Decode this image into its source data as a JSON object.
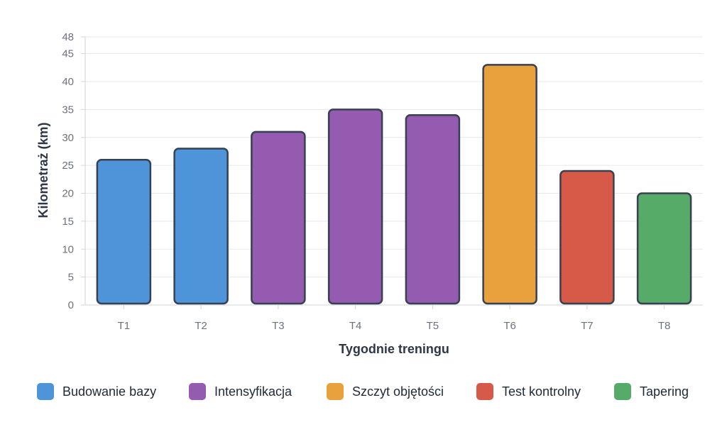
{
  "chart_data": {
    "type": "bar",
    "categories": [
      "T1",
      "T2",
      "T3",
      "T4",
      "T5",
      "T6",
      "T7",
      "T8"
    ],
    "values": [
      26,
      28,
      31,
      35,
      34,
      43,
      24,
      20
    ],
    "bar_colors": [
      "#4e94d8",
      "#4e94d8",
      "#945bb0",
      "#945bb0",
      "#945bb0",
      "#e8a13c",
      "#d65a47",
      "#55ab67"
    ],
    "xlabel": "Tygodnie treningu",
    "ylabel": "Kilometraż (km)",
    "ylim": [
      0,
      48
    ],
    "yticks": [
      0,
      5,
      10,
      15,
      20,
      25,
      30,
      35,
      40,
      45,
      48
    ],
    "grid": true,
    "legend_position": "bottom",
    "legend": [
      {
        "label": "Budowanie bazy",
        "color": "#4e94d8"
      },
      {
        "label": "Intensyfikacja",
        "color": "#945bb0"
      },
      {
        "label": "Szczyt objętości",
        "color": "#e8a13c"
      },
      {
        "label": "Test kontrolny",
        "color": "#d65a47"
      },
      {
        "label": "Tapering",
        "color": "#55ab67"
      }
    ],
    "bar_border_color": "#374151"
  }
}
